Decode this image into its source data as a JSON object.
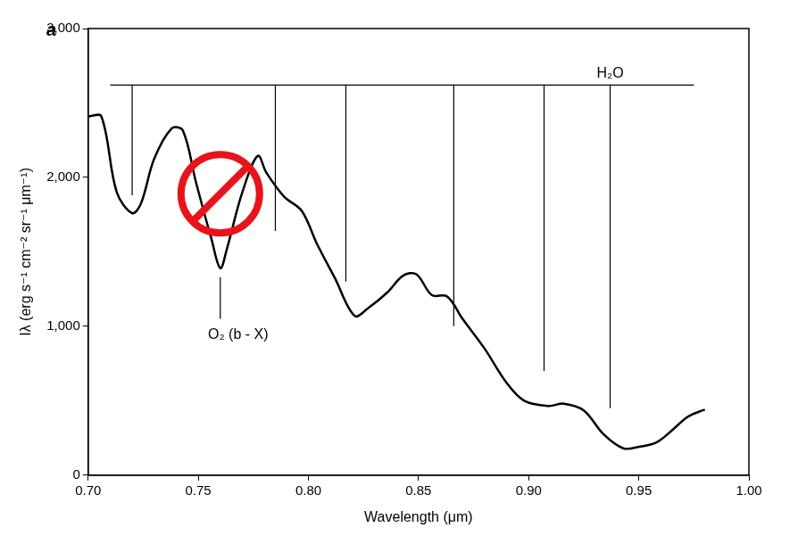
{
  "chart_data": {
    "type": "line",
    "panel_label": "a",
    "x_label": "Wavelength (μm)",
    "y_label": "Iλ (erg s⁻¹ cm⁻² sr⁻¹ μm⁻¹)",
    "x": [
      0.7,
      0.706,
      0.713,
      0.72,
      0.724,
      0.73,
      0.738,
      0.743,
      0.749,
      0.756,
      0.76,
      0.763,
      0.77,
      0.777,
      0.781,
      0.789,
      0.797,
      0.804,
      0.812,
      0.821,
      0.827,
      0.836,
      0.843,
      0.849,
      0.856,
      0.863,
      0.87,
      0.88,
      0.89,
      0.898,
      0.909,
      0.916,
      0.925,
      0.934,
      0.943,
      0.95,
      0.958,
      0.965,
      0.972,
      0.978,
      0.98
    ],
    "values": [
      2410,
      2410,
      1900,
      1760,
      1825,
      2125,
      2330,
      2315,
      1965,
      1585,
      1390,
      1520,
      1900,
      2145,
      2030,
      1870,
      1775,
      1550,
      1325,
      1070,
      1120,
      1230,
      1340,
      1350,
      1210,
      1200,
      1050,
      850,
      620,
      500,
      465,
      480,
      435,
      275,
      180,
      190,
      220,
      300,
      390,
      430,
      440
    ],
    "color": "#000000",
    "xlim": [
      0.7,
      1.0
    ],
    "xticks": [
      {
        "value": 0.7,
        "label": "0.70"
      },
      {
        "value": 0.75,
        "label": "0.75"
      },
      {
        "value": 0.8,
        "label": "0.80"
      },
      {
        "value": 0.85,
        "label": "0.85"
      },
      {
        "value": 0.9,
        "label": "0.90"
      },
      {
        "value": 0.95,
        "label": "0.95"
      },
      {
        "value": 1.0,
        "label": "1.00"
      }
    ],
    "ylim": [
      0,
      3000
    ],
    "yticks": [
      0,
      {
        "value": 1000,
        "label": "1,000"
      },
      {
        "value": 2000,
        "label": "2,000"
      },
      {
        "value": 3000,
        "label": "3,000"
      }
    ],
    "grid": false,
    "annotations": [
      {
        "text": "H₂O",
        "bar_y": 2620,
        "x_start": 0.71,
        "x_end": 0.975,
        "lines": [
          {
            "x": 0.72,
            "y": 1880
          },
          {
            "x": 0.785,
            "y": 1640
          },
          {
            "x": 0.817,
            "y": 1300
          },
          {
            "x": 0.866,
            "y": 1000
          },
          {
            "x": 0.907,
            "y": 700
          },
          {
            "x": 0.937,
            "y": 450
          }
        ]
      },
      {
        "text": "O₂ (b - X)",
        "x": 0.76,
        "y_top": 1330,
        "y_bottom": 1050
      }
    ]
  }
}
